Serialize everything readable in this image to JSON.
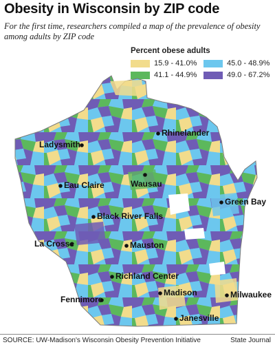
{
  "title": "Obesity in Wisconsin by ZIP code",
  "subtitle": "For the first time, researchers compiled a map of the prevalence of obesity among adults by ZIP code",
  "legend": {
    "title": "Percent obese adults",
    "items": [
      {
        "label": "15.9 - 41.0%",
        "color": "#f2dc8c"
      },
      {
        "label": "45.0 - 48.9%",
        "color": "#6cc7ee"
      },
      {
        "label": "41.1 - 44.9%",
        "color": "#5cb85c"
      },
      {
        "label": "49.0 - 67.2%",
        "color": "#6f5cb5"
      }
    ]
  },
  "cities": [
    {
      "name": "Rhinelander"
    },
    {
      "name": "Ladysmith"
    },
    {
      "name": "Eau Claire"
    },
    {
      "name": "Wausau"
    },
    {
      "name": "Green Bay"
    },
    {
      "name": "Black River Falls"
    },
    {
      "name": "La Crosse"
    },
    {
      "name": "Mauston"
    },
    {
      "name": "Richland Center"
    },
    {
      "name": "Milwaukee"
    },
    {
      "name": "Madison"
    },
    {
      "name": "Fennimore"
    },
    {
      "name": "Janesville"
    }
  ],
  "source": "SOURCE: UW-Madison's Wisconsin Obesity Prevention Initiative",
  "credit": "State Journal"
}
